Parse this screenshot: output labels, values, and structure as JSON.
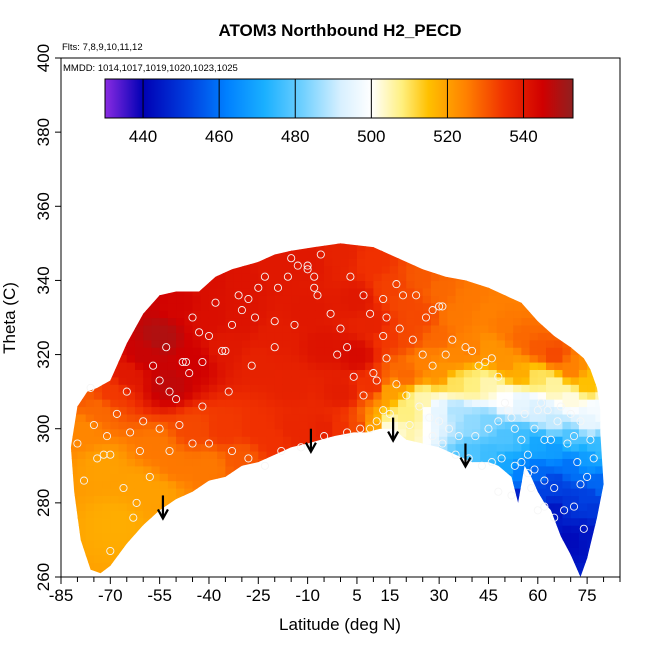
{
  "chart_data": {
    "type": "heatmap",
    "title": "ATOM3 Northbound H2_PECD",
    "subtitle_flights": "Flts: 7,8,9,10,11,12",
    "subtitle_dates": "MMDD: 1014,1017,1019,1020,1023,1025",
    "xlabel": "Latitude (deg N)",
    "ylabel": "Theta (C)",
    "xlim": [
      -85,
      85
    ],
    "ylim": [
      260,
      400
    ],
    "x_ticks": [
      -85,
      -70,
      -55,
      -40,
      -25,
      -10,
      5,
      15,
      30,
      45,
      60,
      75
    ],
    "x_minor_ticks": [
      -80,
      -75,
      -65,
      -60,
      -50,
      -45,
      -35,
      -30,
      -20,
      -15,
      -5,
      0,
      10,
      20,
      25,
      35,
      40,
      50,
      55,
      65,
      70,
      80,
      85
    ],
    "y_ticks": [
      260,
      280,
      300,
      320,
      340,
      360,
      380,
      400
    ],
    "colorbar": {
      "range": [
        430,
        553
      ],
      "ticks": [
        440,
        460,
        480,
        500,
        520,
        540
      ],
      "segment_edges": [
        440,
        460,
        480,
        500,
        520,
        540
      ],
      "stops": [
        {
          "value": 430,
          "color": "#8a2be2"
        },
        {
          "value": 440,
          "color": "#0000b4"
        },
        {
          "value": 452,
          "color": "#0040e0"
        },
        {
          "value": 462,
          "color": "#0080ff"
        },
        {
          "value": 472,
          "color": "#1ab0ff"
        },
        {
          "value": 482,
          "color": "#70d0ff"
        },
        {
          "value": 492,
          "color": "#d8f0ff"
        },
        {
          "value": 500,
          "color": "#ffffff"
        },
        {
          "value": 508,
          "color": "#fff080"
        },
        {
          "value": 515,
          "color": "#ffc000"
        },
        {
          "value": 525,
          "color": "#ff8000"
        },
        {
          "value": 535,
          "color": "#f03000"
        },
        {
          "value": 545,
          "color": "#d00000"
        },
        {
          "value": 553,
          "color": "#902020"
        }
      ]
    },
    "arrows": [
      {
        "lat": -54,
        "theta": 282
      },
      {
        "lat": -9,
        "theta": 300
      },
      {
        "lat": 16,
        "theta": 303
      },
      {
        "lat": 38,
        "theta": 296
      }
    ],
    "upper_boundary": [
      [
        -74,
        311
      ],
      [
        -70,
        313
      ],
      [
        -65,
        323
      ],
      [
        -60,
        331
      ],
      [
        -55,
        336
      ],
      [
        -50,
        337
      ],
      [
        -43,
        337
      ],
      [
        -38,
        341
      ],
      [
        -33,
        343
      ],
      [
        -25,
        345
      ],
      [
        -20,
        347
      ],
      [
        -15,
        348
      ],
      [
        -8,
        349
      ],
      [
        0,
        350
      ],
      [
        10,
        349
      ],
      [
        15,
        347
      ],
      [
        20,
        345
      ],
      [
        25,
        343
      ],
      [
        32,
        341
      ],
      [
        38,
        340
      ],
      [
        45,
        338
      ],
      [
        50,
        336
      ],
      [
        55,
        334
      ],
      [
        60,
        329
      ],
      [
        65,
        325
      ],
      [
        70,
        322
      ],
      [
        74,
        319
      ],
      [
        76,
        316
      ],
      [
        78,
        311
      ],
      [
        79,
        305
      ]
    ],
    "lower_boundary": [
      [
        79,
        299
      ],
      [
        80,
        285
      ],
      [
        78,
        276
      ],
      [
        75,
        265
      ],
      [
        73,
        260
      ],
      [
        70,
        266
      ],
      [
        67,
        271
      ],
      [
        64,
        278
      ],
      [
        62,
        280
      ],
      [
        60,
        283
      ],
      [
        58,
        287
      ],
      [
        56,
        290
      ],
      [
        54,
        280
      ],
      [
        52,
        287
      ],
      [
        48,
        290
      ],
      [
        45,
        291
      ],
      [
        40,
        291
      ],
      [
        35,
        293
      ],
      [
        30,
        295
      ],
      [
        25,
        296
      ],
      [
        20,
        297
      ],
      [
        16,
        300
      ],
      [
        12,
        300
      ],
      [
        8,
        299
      ],
      [
        4,
        299
      ],
      [
        -2,
        298
      ],
      [
        -6,
        297
      ],
      [
        -10,
        296
      ],
      [
        -15,
        295
      ],
      [
        -20,
        293
      ],
      [
        -25,
        291
      ],
      [
        -30,
        290
      ],
      [
        -35,
        287
      ],
      [
        -40,
        286
      ],
      [
        -45,
        283
      ],
      [
        -50,
        281
      ],
      [
        -55,
        278
      ],
      [
        -60,
        274
      ],
      [
        -65,
        269
      ],
      [
        -70,
        263
      ],
      [
        -73,
        261
      ],
      [
        -76,
        262
      ],
      [
        -79,
        270
      ],
      [
        -81,
        283
      ],
      [
        -82,
        295
      ],
      [
        -80,
        306
      ],
      [
        -77,
        310
      ]
    ],
    "control_points": [
      [
        -78,
        300,
        524
      ],
      [
        -72,
        290,
        520
      ],
      [
        -68,
        275,
        518
      ],
      [
        -62,
        285,
        520
      ],
      [
        -56,
        295,
        526
      ],
      [
        -55,
        283,
        520
      ],
      [
        -50,
        290,
        526
      ],
      [
        -45,
        300,
        532
      ],
      [
        -40,
        290,
        526
      ],
      [
        -35,
        300,
        534
      ],
      [
        -30,
        292,
        530
      ],
      [
        -25,
        300,
        535
      ],
      [
        -20,
        297,
        535
      ],
      [
        -15,
        300,
        537
      ],
      [
        -10,
        298,
        537
      ],
      [
        -5,
        300,
        538
      ],
      [
        0,
        300,
        535
      ],
      [
        5,
        300,
        532
      ],
      [
        10,
        300,
        520
      ],
      [
        15,
        300,
        502
      ],
      [
        -74,
        305,
        528
      ],
      [
        -70,
        310,
        534
      ],
      [
        -65,
        315,
        540
      ],
      [
        -60,
        320,
        546
      ],
      [
        -55,
        325,
        549
      ],
      [
        -52,
        312,
        547
      ],
      [
        -45,
        318,
        545
      ],
      [
        -40,
        330,
        542
      ],
      [
        -35,
        322,
        540
      ],
      [
        -30,
        330,
        541
      ],
      [
        -25,
        318,
        538
      ],
      [
        -20,
        325,
        539
      ],
      [
        -15,
        312,
        538
      ],
      [
        -10,
        332,
        540
      ],
      [
        -5,
        322,
        541
      ],
      [
        0,
        310,
        539
      ],
      [
        -60,
        335,
        546
      ],
      [
        -50,
        334,
        544
      ],
      [
        -40,
        340,
        542
      ],
      [
        -30,
        340,
        541
      ],
      [
        -20,
        344,
        540
      ],
      [
        -10,
        345,
        540
      ],
      [
        0,
        347,
        538
      ],
      [
        10,
        345,
        535
      ],
      [
        5,
        335,
        540
      ],
      [
        5,
        320,
        543
      ],
      [
        10,
        328,
        538
      ],
      [
        10,
        312,
        535
      ],
      [
        15,
        338,
        533
      ],
      [
        15,
        325,
        534
      ],
      [
        15,
        310,
        520
      ],
      [
        20,
        335,
        532
      ],
      [
        20,
        325,
        532
      ],
      [
        20,
        315,
        528
      ],
      [
        20,
        305,
        508
      ],
      [
        25,
        340,
        530
      ],
      [
        25,
        330,
        532
      ],
      [
        25,
        318,
        525
      ],
      [
        25,
        308,
        505
      ],
      [
        30,
        338,
        528
      ],
      [
        30,
        325,
        528
      ],
      [
        30,
        315,
        522
      ],
      [
        30,
        305,
        495
      ],
      [
        35,
        330,
        526
      ],
      [
        35,
        320,
        524
      ],
      [
        35,
        312,
        510
      ],
      [
        35,
        305,
        488
      ],
      [
        40,
        335,
        526
      ],
      [
        40,
        322,
        525
      ],
      [
        40,
        312,
        508
      ],
      [
        40,
        302,
        485
      ],
      [
        40,
        293,
        478
      ],
      [
        45,
        332,
        525
      ],
      [
        45,
        322,
        522
      ],
      [
        45,
        312,
        505
      ],
      [
        45,
        302,
        483
      ],
      [
        45,
        293,
        476
      ],
      [
        50,
        328,
        526
      ],
      [
        50,
        318,
        522
      ],
      [
        50,
        308,
        500
      ],
      [
        50,
        298,
        478
      ],
      [
        50,
        290,
        470
      ],
      [
        55,
        325,
        528
      ],
      [
        55,
        315,
        518
      ],
      [
        55,
        307,
        495
      ],
      [
        55,
        298,
        476
      ],
      [
        55,
        288,
        462
      ],
      [
        55,
        281,
        445
      ],
      [
        60,
        322,
        530
      ],
      [
        60,
        314,
        510
      ],
      [
        60,
        305,
        492
      ],
      [
        60,
        296,
        470
      ],
      [
        60,
        288,
        458
      ],
      [
        60,
        283,
        452
      ],
      [
        65,
        320,
        532
      ],
      [
        65,
        312,
        506
      ],
      [
        65,
        302,
        490
      ],
      [
        65,
        295,
        468
      ],
      [
        65,
        285,
        452
      ],
      [
        65,
        278,
        444
      ],
      [
        70,
        316,
        525
      ],
      [
        70,
        308,
        502
      ],
      [
        70,
        298,
        478
      ],
      [
        70,
        290,
        460
      ],
      [
        70,
        280,
        450
      ],
      [
        70,
        270,
        442
      ],
      [
        75,
        312,
        515
      ],
      [
        75,
        302,
        495
      ],
      [
        75,
        292,
        468
      ],
      [
        75,
        282,
        452
      ],
      [
        75,
        272,
        444
      ],
      [
        78,
        305,
        498
      ],
      [
        78,
        295,
        475
      ],
      [
        78,
        285,
        458
      ],
      [
        78,
        278,
        450
      ],
      [
        -78,
        310,
        530
      ]
    ],
    "observations": [
      [
        -76,
        311
      ],
      [
        -80,
        296
      ],
      [
        -78,
        286
      ],
      [
        -74,
        292
      ],
      [
        -72,
        293
      ],
      [
        -70,
        293
      ],
      [
        -70,
        267
      ],
      [
        -61,
        294
      ],
      [
        -60,
        302
      ],
      [
        -50,
        308
      ],
      [
        -52,
        310
      ],
      [
        -55,
        313
      ],
      [
        -47,
        318
      ],
      [
        -46,
        315
      ],
      [
        -48,
        318
      ],
      [
        -43,
        326
      ],
      [
        -40,
        325
      ],
      [
        -42,
        318
      ],
      [
        -36,
        321
      ],
      [
        -35,
        321
      ],
      [
        -33,
        328
      ],
      [
        -30,
        332
      ],
      [
        -28,
        335
      ],
      [
        -26,
        330
      ],
      [
        -25,
        338
      ],
      [
        -20,
        329
      ],
      [
        -19,
        338
      ],
      [
        -16,
        341
      ],
      [
        -13,
        344
      ],
      [
        -10,
        344
      ],
      [
        -10,
        343
      ],
      [
        -8,
        341
      ],
      [
        -7,
        336
      ],
      [
        -3,
        331
      ],
      [
        0,
        327
      ],
      [
        2,
        322
      ],
      [
        -1,
        320
      ],
      [
        -23,
        290
      ],
      [
        -18,
        294
      ],
      [
        -12,
        295
      ],
      [
        -5,
        298
      ],
      [
        2,
        299
      ],
      [
        6,
        300
      ],
      [
        9,
        300
      ],
      [
        11,
        302
      ],
      [
        13,
        305
      ],
      [
        15,
        304
      ],
      [
        11,
        313
      ],
      [
        10,
        315
      ],
      [
        14,
        319
      ],
      [
        13,
        325
      ],
      [
        13,
        335
      ],
      [
        17,
        339
      ],
      [
        19,
        336
      ],
      [
        23,
        336
      ],
      [
        26,
        330
      ],
      [
        28,
        332
      ],
      [
        30,
        333
      ],
      [
        31,
        333
      ],
      [
        32,
        320
      ],
      [
        34,
        324
      ],
      [
        38,
        322
      ],
      [
        40,
        321
      ],
      [
        42,
        317
      ],
      [
        44,
        318
      ],
      [
        46,
        319
      ],
      [
        48,
        314
      ],
      [
        50,
        307
      ],
      [
        51,
        305
      ],
      [
        53,
        300
      ],
      [
        55,
        297
      ],
      [
        55,
        291
      ],
      [
        57,
        293
      ],
      [
        59,
        300
      ],
      [
        60,
        305
      ],
      [
        61,
        307
      ],
      [
        62,
        297
      ],
      [
        64,
        297
      ],
      [
        66,
        302
      ],
      [
        69,
        296
      ],
      [
        71,
        298
      ],
      [
        72,
        291
      ],
      [
        73,
        285
      ],
      [
        71,
        279
      ],
      [
        68,
        278
      ],
      [
        65,
        284
      ],
      [
        62,
        286
      ],
      [
        59,
        289
      ],
      [
        57,
        288
      ],
      [
        53,
        290
      ],
      [
        49,
        292
      ],
      [
        46,
        291
      ],
      [
        43,
        290
      ],
      [
        39,
        292
      ],
      [
        35,
        293
      ],
      [
        31,
        296
      ],
      [
        28,
        298
      ],
      [
        21,
        301
      ],
      [
        48,
        283
      ],
      [
        52,
        282
      ],
      [
        60,
        278
      ],
      [
        74,
        273
      ],
      [
        -66,
        284
      ],
      [
        -58,
        287
      ],
      [
        -52,
        294
      ],
      [
        -45,
        296
      ],
      [
        -40,
        296
      ],
      [
        -33,
        294
      ],
      [
        -28,
        292
      ],
      [
        -63,
        276
      ],
      [
        -62,
        280
      ],
      [
        -75,
        301
      ],
      [
        -68,
        304
      ],
      [
        -65,
        310
      ],
      [
        -57,
        317
      ],
      [
        -53,
        322
      ],
      [
        -45,
        330
      ],
      [
        -38,
        334
      ],
      [
        -31,
        336
      ],
      [
        -23,
        341
      ],
      [
        -15,
        346
      ],
      [
        -6,
        347
      ],
      [
        3,
        341
      ],
      [
        7,
        336
      ],
      [
        9,
        331
      ],
      [
        14,
        330
      ],
      [
        18,
        327
      ],
      [
        22,
        324
      ],
      [
        25,
        320
      ],
      [
        28,
        317
      ],
      [
        -8,
        338
      ],
      [
        -14,
        328
      ],
      [
        -20,
        322
      ],
      [
        -27,
        317
      ],
      [
        -34,
        310
      ],
      [
        -42,
        306
      ],
      [
        -49,
        301
      ],
      [
        -55,
        300
      ],
      [
        -64,
        299
      ],
      [
        -71,
        298
      ],
      [
        4,
        314
      ],
      [
        7,
        309
      ],
      [
        17,
        312
      ],
      [
        20,
        309
      ],
      [
        24,
        306
      ],
      [
        27,
        303
      ],
      [
        30,
        302
      ],
      [
        33,
        300
      ],
      [
        36,
        298
      ],
      [
        41,
        298
      ],
      [
        45,
        300
      ],
      [
        48,
        302
      ],
      [
        52,
        303
      ],
      [
        56,
        304
      ],
      [
        63,
        305
      ],
      [
        67,
        306
      ],
      [
        70,
        304
      ],
      [
        73,
        302
      ],
      [
        76,
        297
      ],
      [
        77,
        292
      ],
      [
        75,
        287
      ],
      [
        65,
        276
      ],
      [
        62,
        279
      ],
      [
        58,
        284
      ]
    ]
  }
}
